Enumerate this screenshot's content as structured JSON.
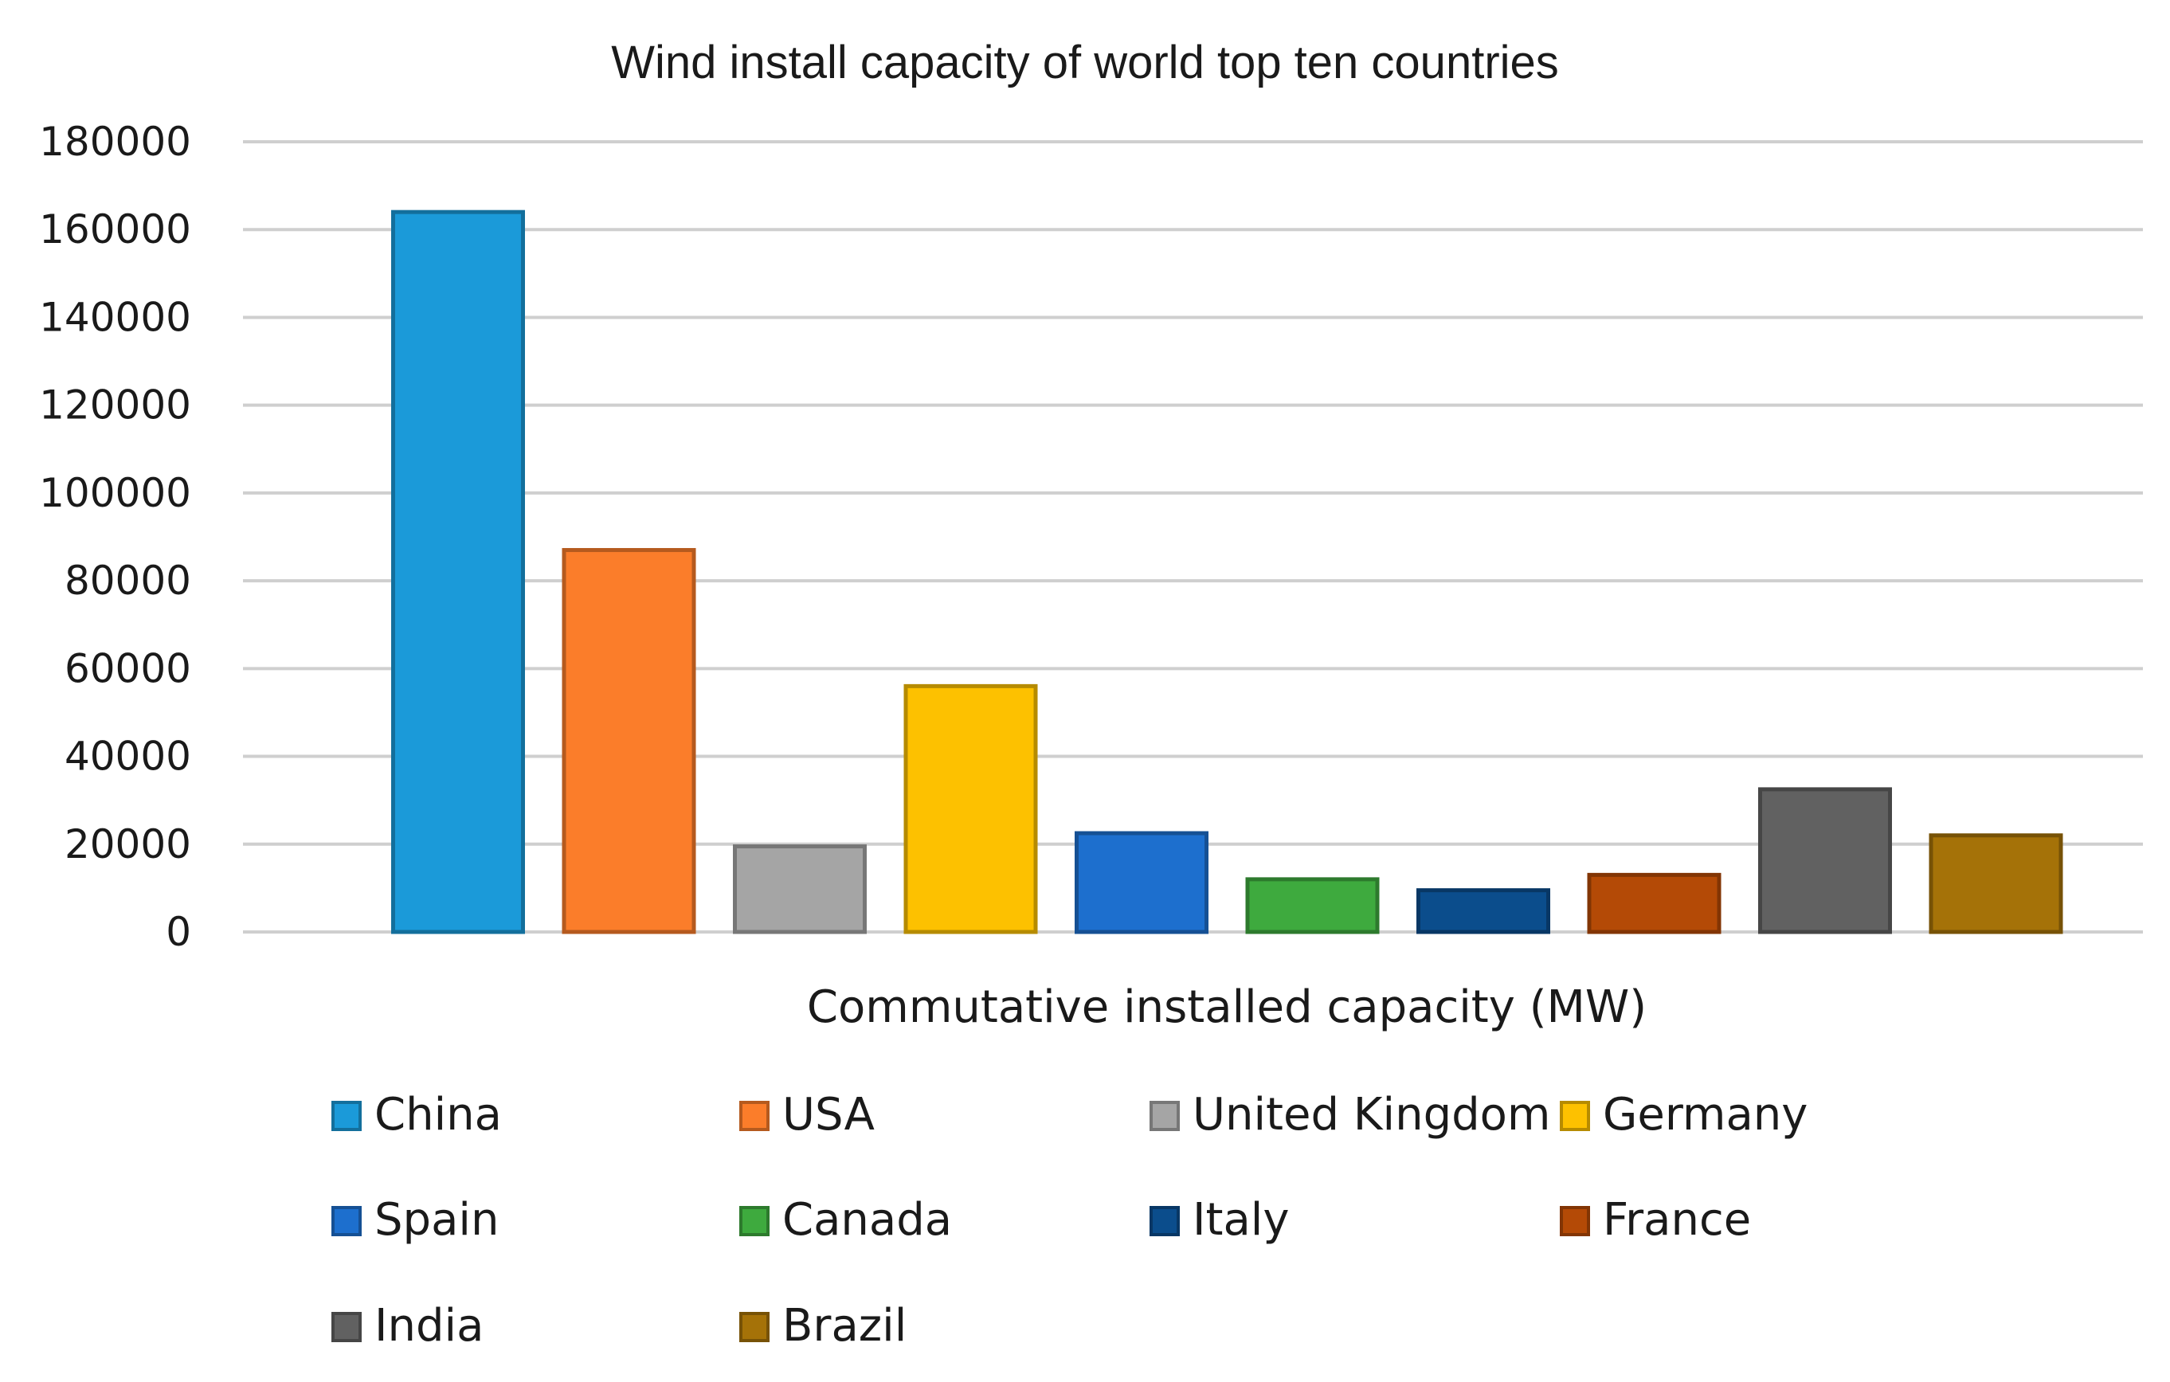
{
  "chart_data": {
    "type": "bar",
    "title": "Wind install capacity of world top ten countries",
    "xlabel": "Commutative installed capacity (MW)",
    "ylabel": "",
    "ylim": [
      0,
      180000
    ],
    "yticks": [
      "0",
      "20000",
      "40000",
      "60000",
      "80000",
      "100000",
      "120000",
      "140000",
      "160000",
      "180000"
    ],
    "grid": true,
    "legend_position": "bottom",
    "series": [
      {
        "name": "China",
        "value": 164000,
        "color": "#1b9ad9"
      },
      {
        "name": "USA",
        "value": 87000,
        "color": "#fb7d2a"
      },
      {
        "name": "United Kingdom",
        "value": 19500,
        "color": "#a5a5a5"
      },
      {
        "name": "Germany",
        "value": 56000,
        "color": "#fdc100"
      },
      {
        "name": "Spain",
        "value": 22500,
        "color": "#1d6fce"
      },
      {
        "name": "Canada",
        "value": 12000,
        "color": "#3eaa3e"
      },
      {
        "name": "Italy",
        "value": 9500,
        "color": "#0b4d8c"
      },
      {
        "name": "France",
        "value": 13000,
        "color": "#b44a06"
      },
      {
        "name": "India",
        "value": 32500,
        "color": "#616161"
      },
      {
        "name": "Brazil",
        "value": 22000,
        "color": "#a57208"
      }
    ]
  }
}
